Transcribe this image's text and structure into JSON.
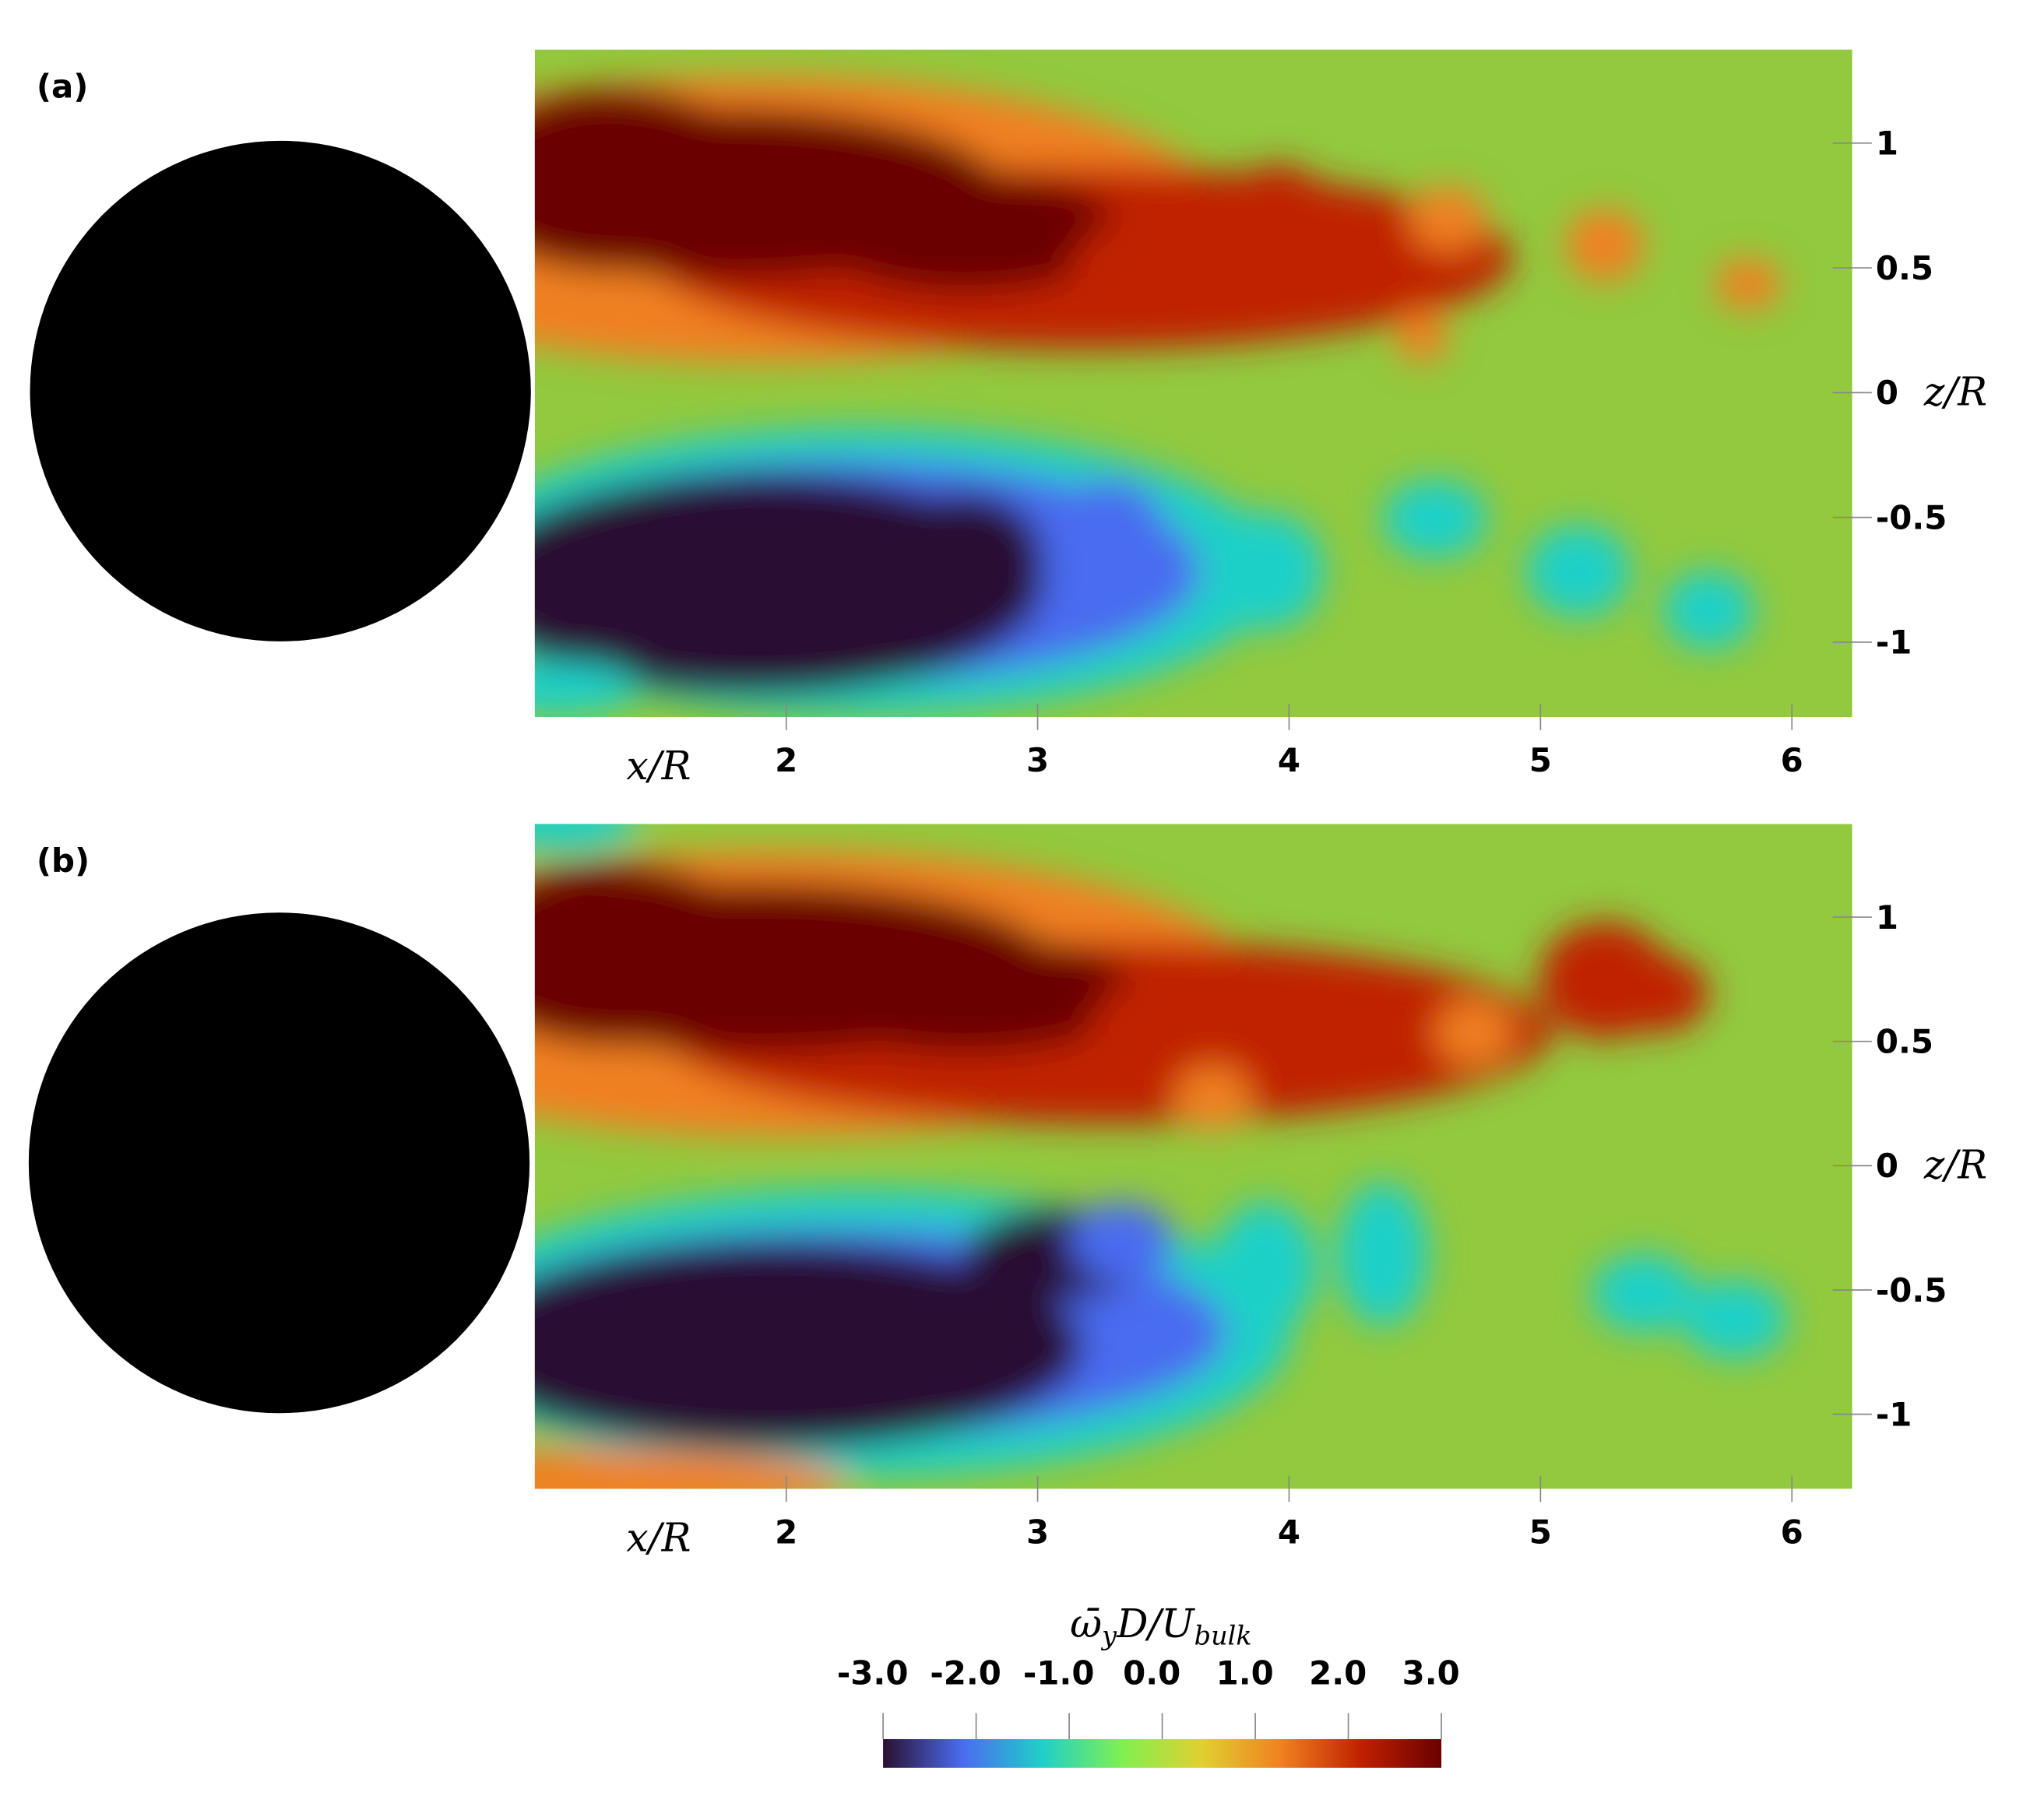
{
  "chart_data": [
    {
      "type": "contour",
      "panel": "(a)",
      "xlabel": "x/R",
      "ylabel": "z/R",
      "xlim": [
        1.0,
        6.24
      ],
      "xticks": [
        2,
        3,
        4,
        5,
        6
      ],
      "ylim": [
        -1.3,
        1.375
      ],
      "yticks": [
        1,
        0.5,
        0,
        -0.5,
        -1
      ]
    },
    {
      "type": "contour",
      "panel": "(b)",
      "xlabel": "x/R",
      "ylabel": "z/R",
      "xlim": [
        1.0,
        6.24
      ],
      "xticks": [
        2,
        3,
        4,
        5,
        6
      ],
      "ylim": [
        -1.3,
        1.375
      ],
      "yticks": [
        1,
        0.5,
        0,
        -0.5,
        -1
      ]
    }
  ],
  "colorbar": {
    "label": [
      "ω̄",
      "y",
      "D/U",
      "bulk"
    ],
    "lim": [
      -3,
      3
    ],
    "ticks": [
      {
        "value": -3,
        "label": "-3.0"
      },
      {
        "value": -2,
        "label": "-2.0"
      },
      {
        "value": -1,
        "label": "-1.0"
      },
      {
        "value": 0,
        "label": "0.0"
      },
      {
        "value": 1,
        "label": "1.0"
      },
      {
        "value": 2,
        "label": "2.0"
      },
      {
        "value": 3,
        "label": "3.0"
      }
    ],
    "colors": [
      "#2a1030",
      "#4a6cf0",
      "#1fd0c8",
      "#80f050",
      "#e0d030",
      "#f08020",
      "#c02000",
      "#6a0000"
    ]
  }
}
